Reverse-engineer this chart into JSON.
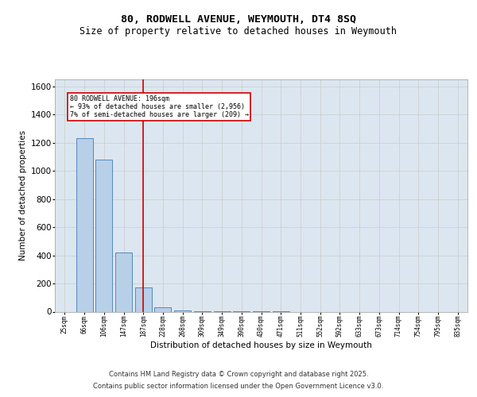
{
  "title": "80, RODWELL AVENUE, WEYMOUTH, DT4 8SQ",
  "subtitle": "Size of property relative to detached houses in Weymouth",
  "xlabel": "Distribution of detached houses by size in Weymouth",
  "ylabel": "Number of detached properties",
  "categories": [
    "25sqm",
    "66sqm",
    "106sqm",
    "147sqm",
    "187sqm",
    "228sqm",
    "268sqm",
    "309sqm",
    "349sqm",
    "390sqm",
    "430sqm",
    "471sqm",
    "511sqm",
    "552sqm",
    "592sqm",
    "633sqm",
    "673sqm",
    "714sqm",
    "754sqm",
    "795sqm",
    "835sqm"
  ],
  "values": [
    0,
    1230,
    1080,
    420,
    170,
    30,
    10,
    5,
    3,
    2,
    1,
    1,
    0,
    0,
    0,
    0,
    0,
    0,
    0,
    0,
    0
  ],
  "bar_color": "#b8cfe8",
  "bar_edge_color": "#5588bb",
  "highlight_index": 4,
  "highlight_line_color": "#cc0000",
  "annotation_text": "80 RODWELL AVENUE: 196sqm\n← 93% of detached houses are smaller (2,956)\n7% of semi-detached houses are larger (209) →",
  "annotation_box_color": "#ffffff",
  "annotation_box_edge": "#cc0000",
  "ylim": [
    0,
    1650
  ],
  "yticks": [
    0,
    200,
    400,
    600,
    800,
    1000,
    1200,
    1400,
    1600
  ],
  "grid_color": "#cccccc",
  "background_color": "#dce6f0",
  "footer_line1": "Contains HM Land Registry data © Crown copyright and database right 2025.",
  "footer_line2": "Contains public sector information licensed under the Open Government Licence v3.0.",
  "title_fontsize": 9.5,
  "subtitle_fontsize": 8.5
}
